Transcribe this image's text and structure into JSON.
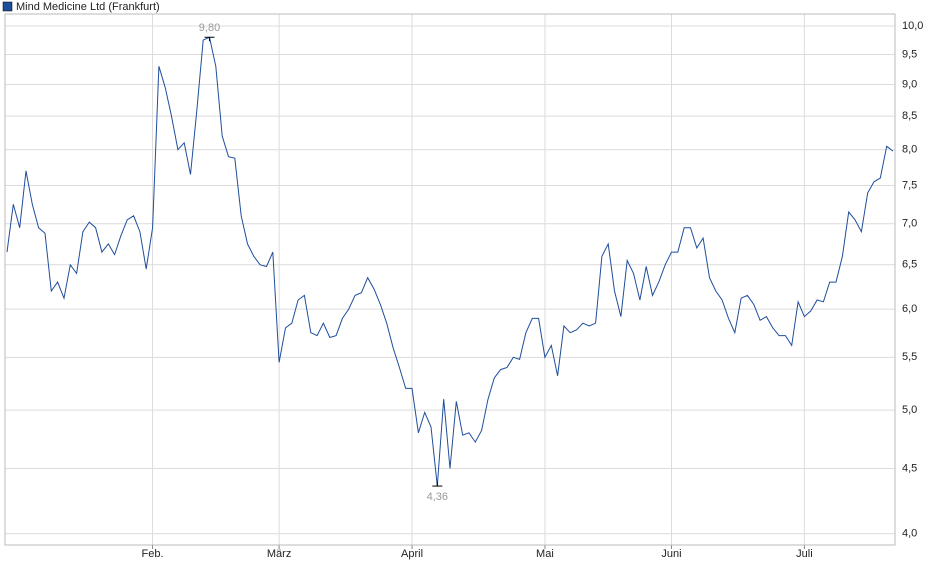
{
  "chart_data": {
    "type": "line",
    "series": [
      {
        "name": "Mind Medicine Ltd (Frankfurt)",
        "color": "#1f4e9c",
        "values": [
          6.65,
          7.25,
          6.95,
          7.7,
          7.25,
          6.95,
          6.88,
          6.2,
          6.3,
          6.12,
          6.5,
          6.4,
          6.9,
          7.02,
          6.95,
          6.65,
          6.75,
          6.62,
          6.85,
          7.05,
          7.1,
          6.9,
          6.45,
          6.95,
          9.3,
          8.95,
          8.5,
          8.0,
          8.1,
          7.65,
          8.6,
          9.75,
          9.8,
          9.3,
          8.2,
          7.9,
          7.88,
          7.1,
          6.75,
          6.6,
          6.5,
          6.48,
          6.65,
          5.45,
          5.8,
          5.85,
          6.1,
          6.15,
          5.75,
          5.72,
          5.85,
          5.7,
          5.72,
          5.9,
          6.0,
          6.15,
          6.18,
          6.35,
          6.22,
          6.05,
          5.85,
          5.6,
          5.4,
          5.2,
          5.2,
          4.8,
          4.98,
          4.85,
          4.36,
          5.1,
          4.5,
          5.08,
          4.78,
          4.8,
          4.72,
          4.82,
          5.1,
          5.3,
          5.38,
          5.4,
          5.5,
          5.48,
          5.75,
          5.9,
          5.9,
          5.5,
          5.62,
          5.32,
          5.82,
          5.75,
          5.78,
          5.85,
          5.82,
          5.85,
          6.6,
          6.75,
          6.2,
          5.92,
          6.55,
          6.4,
          6.1,
          6.48,
          6.15,
          6.3,
          6.5,
          6.65,
          6.65,
          6.95,
          6.95,
          6.7,
          6.82,
          6.35,
          6.2,
          6.1,
          5.9,
          5.75,
          6.12,
          6.15,
          6.05,
          5.88,
          5.92,
          5.8,
          5.72,
          5.72,
          5.62,
          6.08,
          5.92,
          5.98,
          6.1,
          6.08,
          6.3,
          6.3,
          6.6,
          7.15,
          7.05,
          6.9,
          7.4,
          7.55,
          7.6,
          8.05,
          7.98
        ]
      }
    ],
    "categories": [
      null,
      null,
      null,
      null,
      null,
      null,
      null,
      null,
      null,
      null,
      null,
      null,
      null,
      null,
      null,
      null,
      null,
      null,
      null,
      null,
      null,
      null,
      null,
      "Feb.",
      null,
      null,
      null,
      null,
      null,
      null,
      null,
      null,
      null,
      null,
      null,
      null,
      null,
      null,
      null,
      null,
      null,
      null,
      null,
      "März",
      null,
      null,
      null,
      null,
      null,
      null,
      null,
      null,
      null,
      null,
      null,
      null,
      null,
      null,
      null,
      null,
      null,
      null,
      null,
      null,
      "April",
      null,
      null,
      null,
      null,
      null,
      null,
      null,
      null,
      null,
      null,
      null,
      null,
      null,
      null,
      null,
      null,
      null,
      null,
      null,
      null,
      "Mai",
      null,
      null,
      null,
      null,
      null,
      null,
      null,
      null,
      null,
      null,
      null,
      null,
      null,
      null,
      null,
      null,
      null,
      null,
      null,
      "Juni",
      null,
      null,
      null,
      null,
      null,
      null,
      null,
      null,
      null,
      null,
      null,
      null,
      null,
      null,
      null,
      null,
      null,
      null,
      null,
      null,
      "Juli",
      null,
      null,
      null,
      null,
      null,
      null,
      null,
      null,
      null,
      null,
      null,
      null,
      null,
      null
    ],
    "ylim": [
      3.92,
      10.22
    ],
    "log": true,
    "grid": true,
    "yticks": [
      {
        "value": 4.0,
        "label": "4,0"
      },
      {
        "value": 4.5,
        "label": "4,5"
      },
      {
        "value": 5.0,
        "label": "5,0"
      },
      {
        "value": 5.5,
        "label": "5,5"
      },
      {
        "value": 6.0,
        "label": "6,0"
      },
      {
        "value": 6.5,
        "label": "6,5"
      },
      {
        "value": 7.0,
        "label": "7,0"
      },
      {
        "value": 7.5,
        "label": "7,5"
      },
      {
        "value": 8.0,
        "label": "8,0"
      },
      {
        "value": 8.5,
        "label": "8,5"
      },
      {
        "value": 9.0,
        "label": "9,0"
      },
      {
        "value": 9.5,
        "label": "9,5"
      },
      {
        "value": 10.0,
        "label": "10,0"
      }
    ],
    "annotations": [
      {
        "text": "9,80",
        "value": 9.8
      },
      {
        "text": "4,36",
        "value": 4.36
      }
    ]
  }
}
